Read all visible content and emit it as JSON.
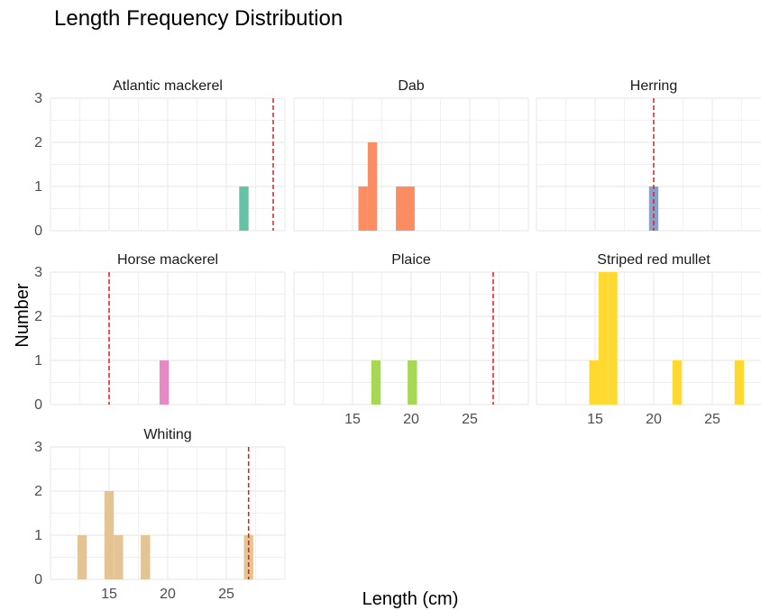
{
  "chart_data": {
    "type": "bar",
    "title": "Length Frequency Distribution",
    "xlabel": "Length (cm)",
    "ylabel": "Number",
    "xlim": [
      10,
      30
    ],
    "ylim": [
      0,
      3
    ],
    "x_ticks": [
      "15",
      "20",
      "25"
    ],
    "y_ticks": [
      "0",
      "1",
      "2",
      "3"
    ],
    "bin_width": 0.8,
    "grid": true,
    "legend": "none",
    "reference_line_color": "#e41a1c",
    "panels": [
      {
        "name": "Atlantic mackerel",
        "color": "#66c2a5",
        "reference_line": 29.0,
        "bars": [
          {
            "x": 26.5,
            "count": 1
          }
        ]
      },
      {
        "name": "Dab",
        "color": "#fc8d62",
        "reference_line": null,
        "bars": [
          {
            "x": 15.9,
            "count": 1
          },
          {
            "x": 16.7,
            "count": 2
          },
          {
            "x": 19.1,
            "count": 1
          },
          {
            "x": 19.9,
            "count": 1
          }
        ]
      },
      {
        "name": "Herring",
        "color": "#8da0cb",
        "reference_line": 20.0,
        "bars": [
          {
            "x": 20.0,
            "count": 1
          }
        ]
      },
      {
        "name": "Horse mackerel",
        "color": "#e78ac3",
        "reference_line": 15.0,
        "bars": [
          {
            "x": 19.7,
            "count": 1
          }
        ]
      },
      {
        "name": "Plaice",
        "color": "#a6d854",
        "reference_line": 27.0,
        "bars": [
          {
            "x": 17.0,
            "count": 1
          },
          {
            "x": 20.1,
            "count": 1
          }
        ]
      },
      {
        "name": "Striped red mullet",
        "color": "#ffd92f",
        "reference_line": null,
        "bars": [
          {
            "x": 14.9,
            "count": 1
          },
          {
            "x": 15.7,
            "count": 3
          },
          {
            "x": 16.5,
            "count": 3
          },
          {
            "x": 22.0,
            "count": 1
          },
          {
            "x": 27.3,
            "count": 1
          }
        ]
      },
      {
        "name": "Whiting",
        "color": "#e5c494",
        "reference_line": 26.9,
        "bars": [
          {
            "x": 12.7,
            "count": 1
          },
          {
            "x": 15.0,
            "count": 2
          },
          {
            "x": 15.8,
            "count": 1
          },
          {
            "x": 18.1,
            "count": 1
          },
          {
            "x": 26.9,
            "count": 1
          }
        ]
      }
    ]
  }
}
